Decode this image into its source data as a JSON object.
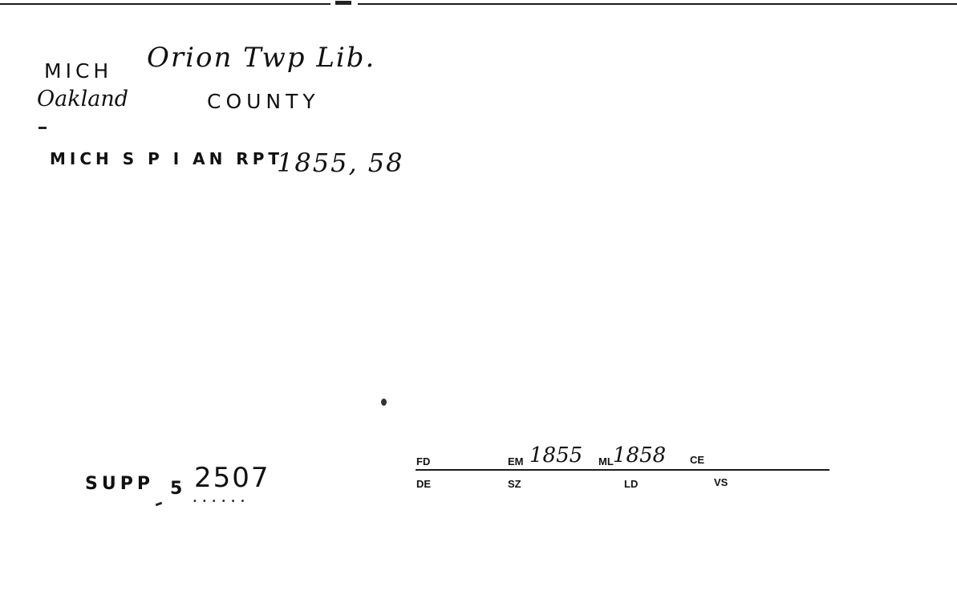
{
  "card": {
    "state": "MICH",
    "library": "Orion Twp Lib.",
    "county_name": "Oakland",
    "county_label": "COUNTY",
    "source_typed": "MICH S P I AN RPT",
    "source_years": "1855, 58",
    "supp_label": "SUPP",
    "supp_prefix": "5",
    "supp_number": "2507",
    "supp_dots": "••••••",
    "fields": {
      "fd": "FD",
      "em": "EM",
      "em_value": "1855",
      "ml": "ML",
      "ml_value": "1858",
      "ce": "CE",
      "de": "DE",
      "sz": "SZ",
      "ld": "LD",
      "vs": "VS"
    }
  }
}
